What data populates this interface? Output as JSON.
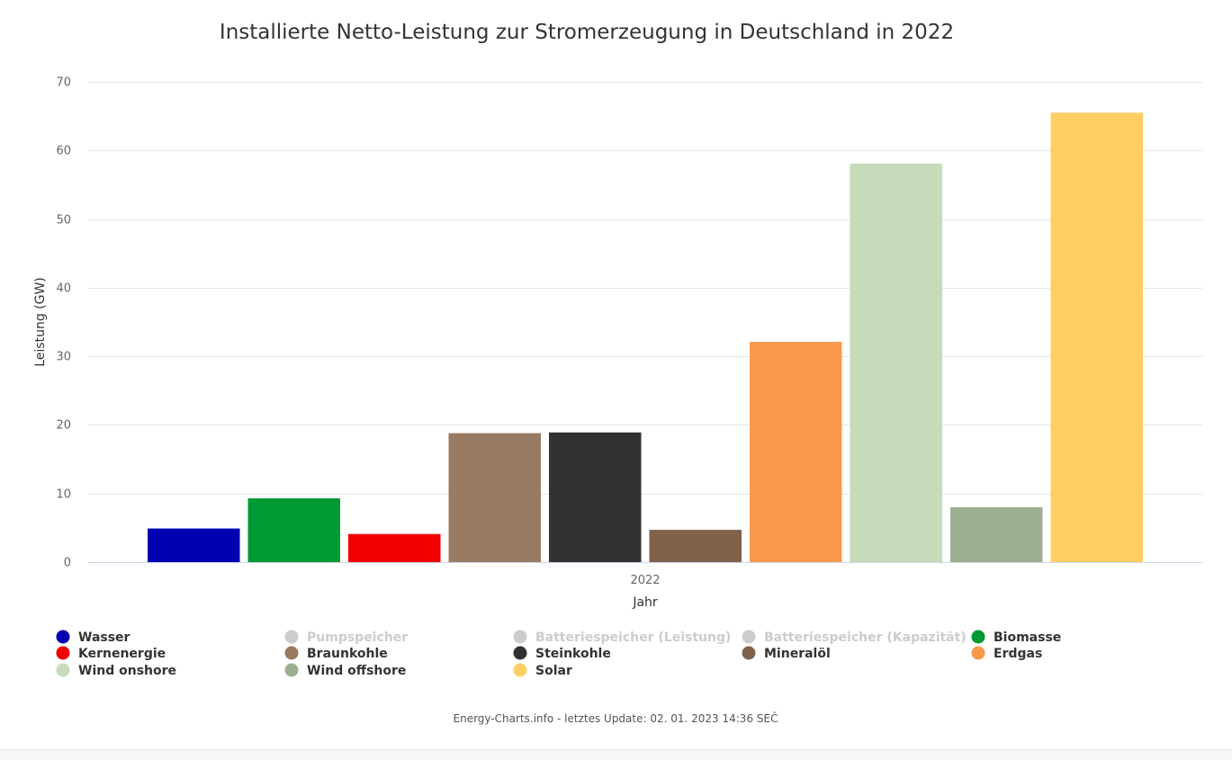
{
  "chart_data": {
    "type": "bar",
    "title": "Installierte Netto-Leistung zur Stromerzeugung in Deutschland in 2022",
    "xlabel": "Jahr",
    "ylabel": "Leistung (GW)",
    "categories": [
      "2022"
    ],
    "ylim": [
      0,
      70
    ],
    "yticks": [
      0,
      10,
      20,
      30,
      40,
      50,
      60,
      70
    ],
    "grid": true,
    "legend_position": "bottom",
    "series": [
      {
        "name": "Wasser",
        "values": [
          4.9
        ],
        "color": "#0000b0",
        "visible": true
      },
      {
        "name": "Pumpspeicher",
        "values": [
          null
        ],
        "color": "#cccccc",
        "visible": false
      },
      {
        "name": "Batteriespeicher (Leistung)",
        "values": [
          null
        ],
        "color": "#cccccc",
        "visible": false
      },
      {
        "name": "Batteriespeicher (Kapazität)",
        "values": [
          null
        ],
        "color": "#cccccc",
        "visible": false
      },
      {
        "name": "Biomasse",
        "values": [
          9.3
        ],
        "color": "#009933",
        "visible": true
      },
      {
        "name": "Kernenergie",
        "values": [
          4.1
        ],
        "color": "#f00000",
        "visible": true
      },
      {
        "name": "Braunkohle",
        "values": [
          18.8
        ],
        "color": "#987b62",
        "visible": true
      },
      {
        "name": "Steinkohle",
        "values": [
          18.9
        ],
        "color": "#323232",
        "visible": true
      },
      {
        "name": "Mineralöl",
        "values": [
          4.7
        ],
        "color": "#7f6249",
        "visible": true
      },
      {
        "name": "Erdgas",
        "values": [
          32.1
        ],
        "color": "#f9994c",
        "visible": true
      },
      {
        "name": "Wind onshore",
        "values": [
          58.1
        ],
        "color": "#c5dbba",
        "visible": true
      },
      {
        "name": "Wind offshore",
        "values": [
          8.0
        ],
        "color": "#9daf90",
        "visible": true
      },
      {
        "name": "Solar",
        "values": [
          65.5
        ],
        "color": "#ffce63",
        "visible": true
      }
    ],
    "credit": "Energy-Charts.info - letztes Update: 02. 01. 2023 14:36 SEČ"
  }
}
